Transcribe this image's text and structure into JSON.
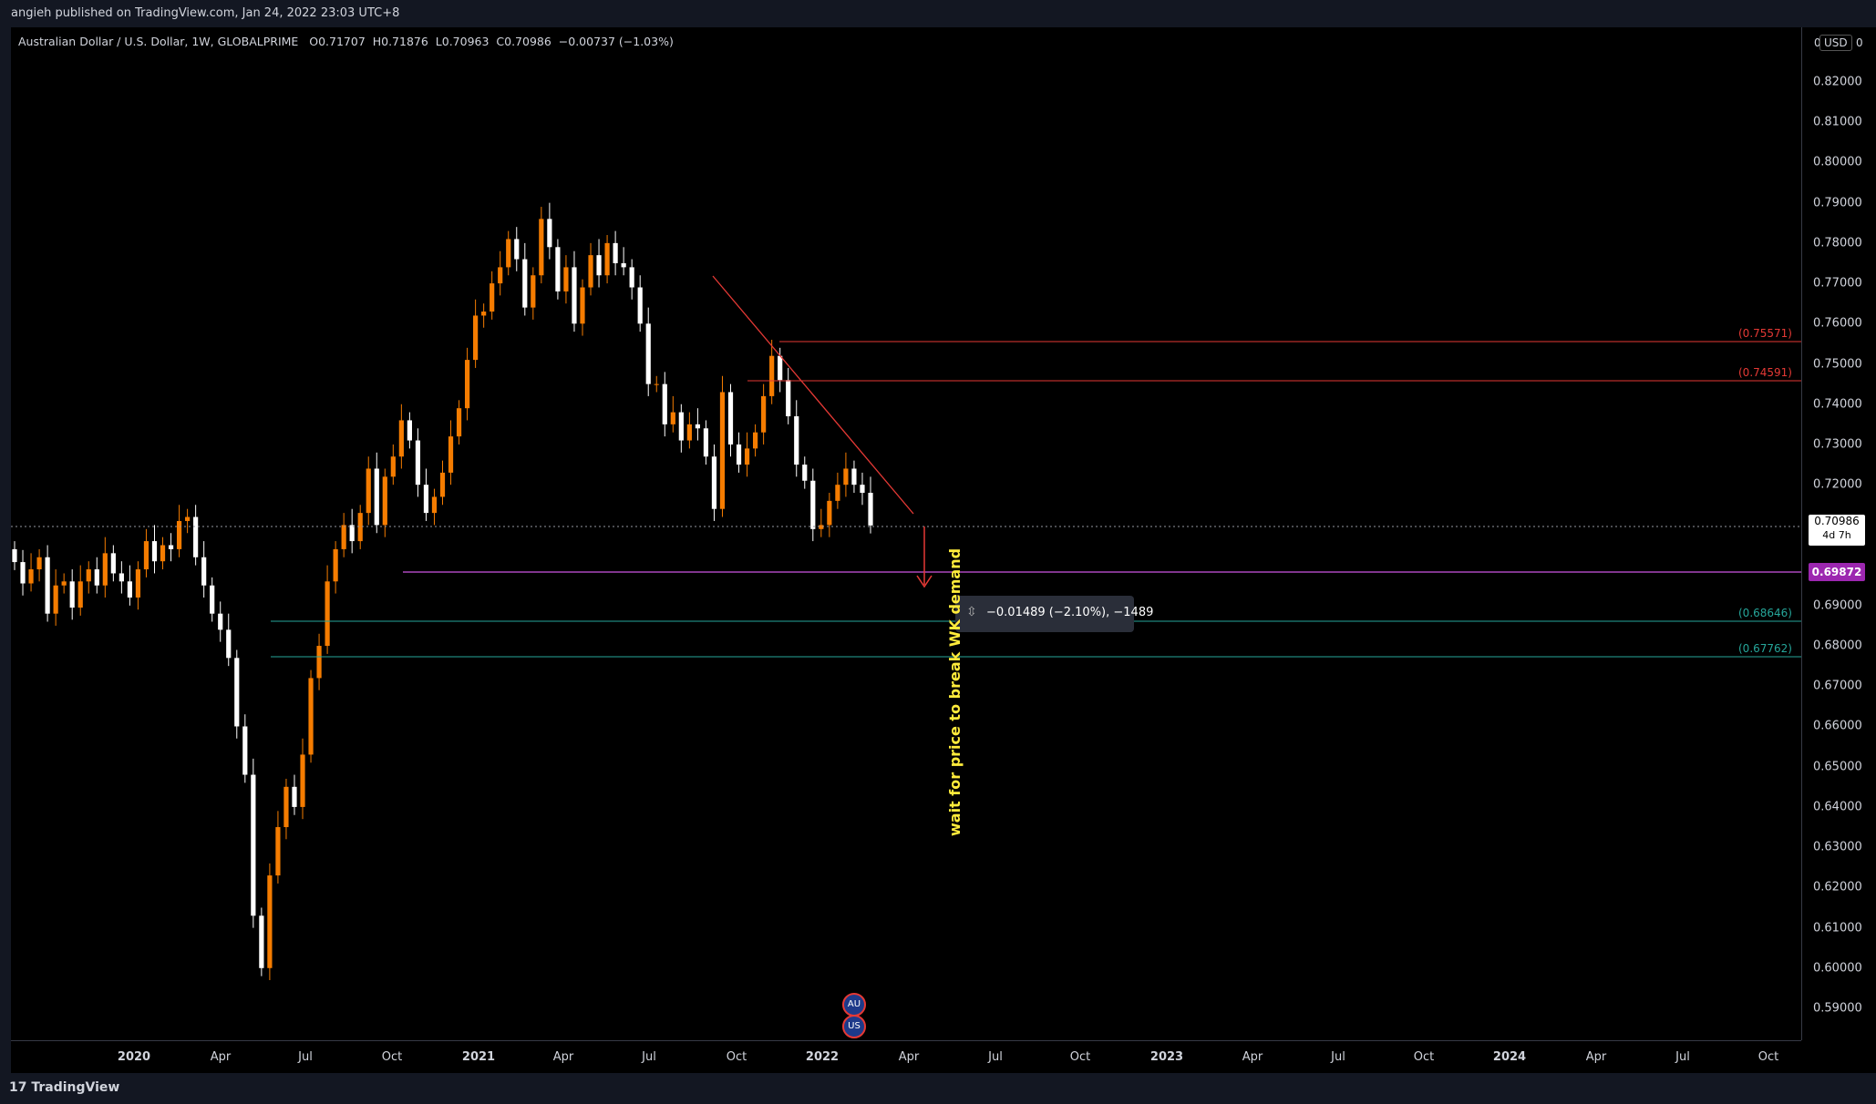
{
  "header": {
    "publisher": "angieh published on TradingView.com, Jan 24, 2022 23:03 UTC+8"
  },
  "legend": {
    "symbol": "Australian Dollar / U.S. Dollar, 1W, GLOBALPRIME",
    "open": "O0.71707",
    "high": "H0.71876",
    "low": "L0.70963",
    "close": "C0.70986",
    "change": "−0.00737 (−1.03%)"
  },
  "price_axis": {
    "currency": "USD",
    "zero_left": "0",
    "zero_right": "0",
    "labels": [
      "0.82000",
      "0.81000",
      "0.80000",
      "0.79000",
      "0.78000",
      "0.77000",
      "0.76000",
      "0.75000",
      "0.74000",
      "0.73000",
      "0.72000",
      "0.69000",
      "0.68000",
      "0.67000",
      "0.66000",
      "0.65000",
      "0.64000",
      "0.63000",
      "0.62000",
      "0.61000",
      "0.60000",
      "0.59000"
    ]
  },
  "time_axis": {
    "labels": [
      "2020",
      "Apr",
      "Jul",
      "Oct",
      "2021",
      "Apr",
      "Jul",
      "Oct",
      "2022",
      "Apr",
      "Jul",
      "Oct",
      "2023",
      "Apr",
      "Jul",
      "Oct",
      "2024",
      "Apr",
      "Jul",
      "Oct"
    ]
  },
  "levels": {
    "upper1": "(0.75571)",
    "upper2": "(0.74591)",
    "lower1": "(0.68646)",
    "lower2": "(0.67762)"
  },
  "tags": {
    "last_price": "0.70986",
    "countdown": "4d 7h",
    "demand": "0.69872"
  },
  "measure": {
    "text": "−0.01489 (−2.10%), −1489"
  },
  "annotation": "wait for price to break WK demand",
  "footer": {
    "brand": "TradingView"
  },
  "colors": {
    "bull": "#f57c00",
    "bear": "#ffffff",
    "resistance": "#e53935",
    "support": "#26a69a",
    "demand": "#ab47bc",
    "annotation": "#ffeb3b"
  }
}
